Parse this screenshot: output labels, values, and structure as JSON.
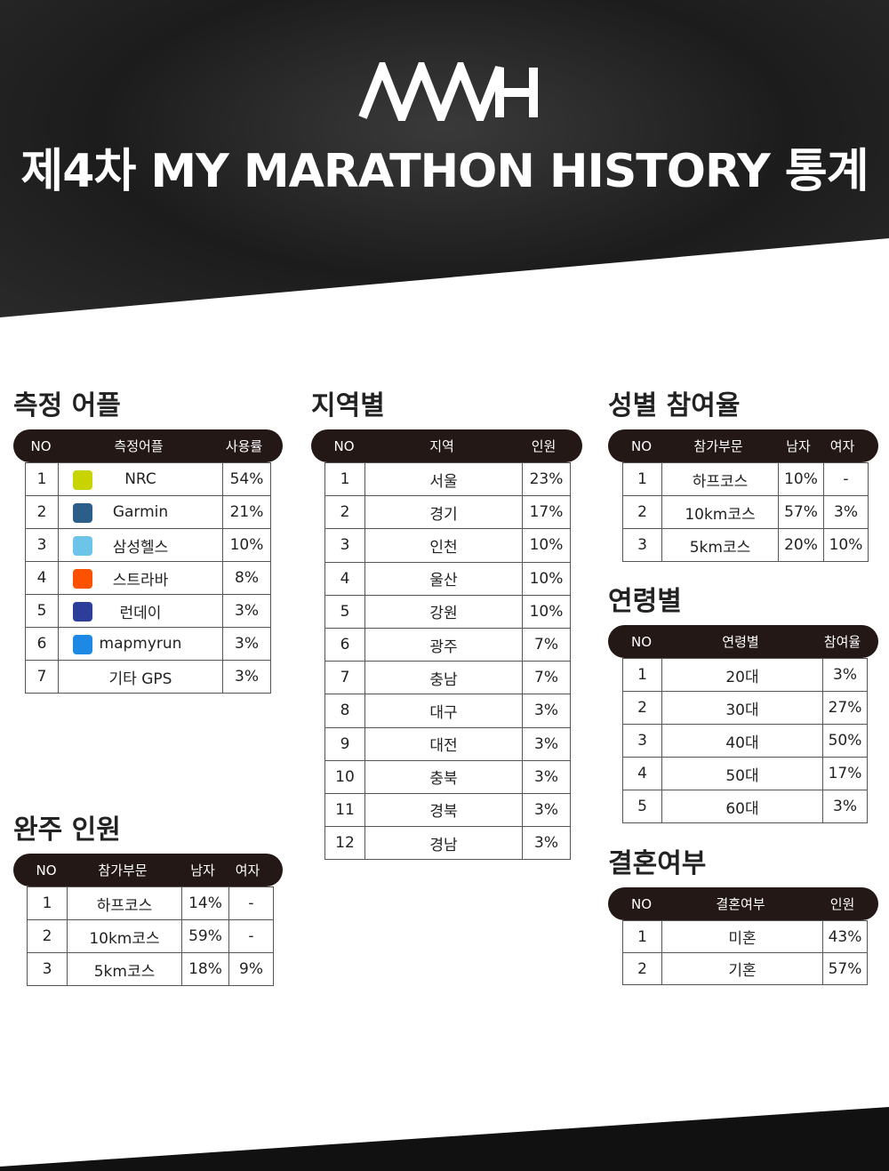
{
  "header": {
    "title": "제4차 MY MARATHON HISTORY 통계"
  },
  "sections": [
    {
      "title": "측정 어플",
      "columns": [
        "NO",
        "측정어플",
        "사용률"
      ],
      "rows": [
        [
          "1",
          "NRC",
          "54%"
        ],
        [
          "2",
          "Garmin",
          "21%"
        ],
        [
          "3",
          "삼성헬스",
          "10%"
        ],
        [
          "4",
          "스트라바",
          "8%"
        ],
        [
          "5",
          "런데이",
          "3%"
        ],
        [
          "6",
          "mapmyrun",
          "3%"
        ],
        [
          "7",
          "기타 GPS",
          "3%"
        ]
      ]
    },
    {
      "title": "지역별",
      "columns": [
        "NO",
        "지역",
        "인원"
      ],
      "rows": [
        [
          "1",
          "서울",
          "23%"
        ],
        [
          "2",
          "경기",
          "17%"
        ],
        [
          "3",
          "인천",
          "10%"
        ],
        [
          "4",
          "울산",
          "10%"
        ],
        [
          "5",
          "강원",
          "10%"
        ],
        [
          "6",
          "광주",
          "7%"
        ],
        [
          "7",
          "충남",
          "7%"
        ],
        [
          "8",
          "대구",
          "3%"
        ],
        [
          "9",
          "대전",
          "3%"
        ],
        [
          "10",
          "충북",
          "3%"
        ],
        [
          "11",
          "경북",
          "3%"
        ],
        [
          "12",
          "경남",
          "3%"
        ]
      ]
    },
    {
      "title": "성별 참여율",
      "columns": [
        "NO",
        "참가부문",
        "남자",
        "여자"
      ],
      "rows": [
        [
          "1",
          "하프코스",
          "10%",
          "-"
        ],
        [
          "2",
          "10km코스",
          "57%",
          "3%"
        ],
        [
          "3",
          "5km코스",
          "20%",
          "10%"
        ]
      ]
    },
    {
      "title": "연령별",
      "columns": [
        "NO",
        "연령별",
        "참여율"
      ],
      "rows": [
        [
          "1",
          "20대",
          "3%"
        ],
        [
          "2",
          "30대",
          "27%"
        ],
        [
          "3",
          "40대",
          "50%"
        ],
        [
          "4",
          "50대",
          "17%"
        ],
        [
          "5",
          "60대",
          "3%"
        ]
      ]
    },
    {
      "title": "결혼여부",
      "columns": [
        "NO",
        "결혼여부",
        "인원"
      ],
      "rows": [
        [
          "1",
          "미혼",
          "43%"
        ],
        [
          "2",
          "기혼",
          "57%"
        ]
      ]
    },
    {
      "title": "완주 인원",
      "columns": [
        "NO",
        "참가부문",
        "남자",
        "여자"
      ],
      "rows": [
        [
          "1",
          "하프코스",
          "14%",
          "-"
        ],
        [
          "2",
          "10km코스",
          "59%",
          "-"
        ],
        [
          "3",
          "5km코스",
          "18%",
          "9%"
        ]
      ]
    }
  ]
}
